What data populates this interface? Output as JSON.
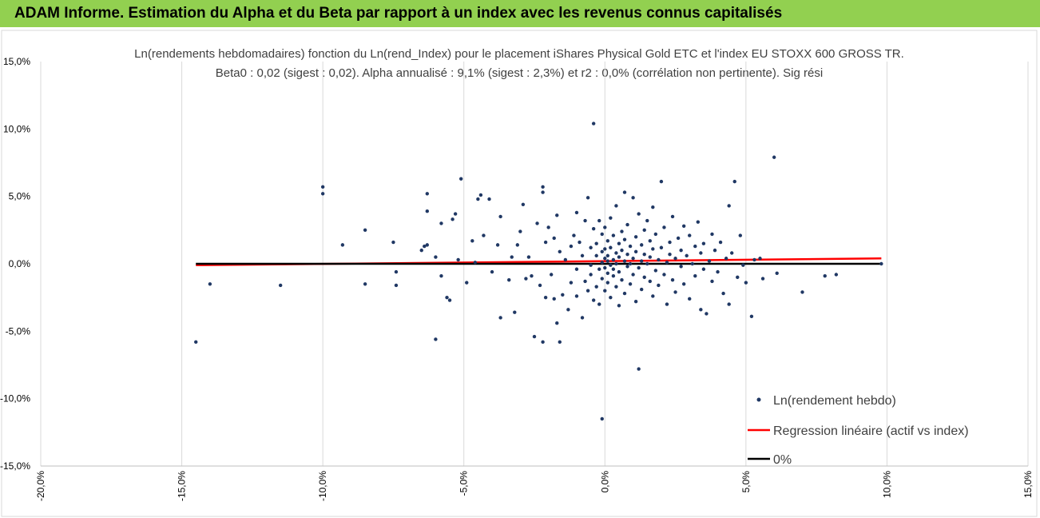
{
  "header": {
    "title": "ADAM Informe. Estimation du Alpha et du Beta par rapport à un index avec les revenus connus capitalisés",
    "background": "#92d050"
  },
  "chart_data": {
    "type": "scatter",
    "title_line1": "Ln(rendements hebdomadaires) fonction du Ln(rend_Index) pour le placement iShares Physical Gold ETC et l'index EU STOXX 600 GROSS TR.",
    "title_line2": "Beta0 : 0,02  (sigest : 0,02).  Alpha annualisé : 9,1% (sigest : 2,3%)  et r2 : 0,0% (corrélation non pertinente). Sig rési",
    "xlim": [
      -0.2,
      0.15
    ],
    "ylim": [
      -0.15,
      0.15
    ],
    "x_ticks": [
      -0.2,
      -0.15,
      -0.1,
      -0.05,
      0.0,
      0.05,
      0.1,
      0.15
    ],
    "x_tick_labels": [
      "-20,0%",
      "-15,0%",
      "-10,0%",
      "-5,0%",
      "0,0%",
      "5,0%",
      "10,0%",
      "15,0%"
    ],
    "y_ticks": [
      0.15,
      0.1,
      0.05,
      0.0,
      -0.05,
      -0.1,
      -0.15
    ],
    "y_tick_labels": [
      "15,0%",
      "10,0%",
      "5,0%",
      "0,0%",
      "-5,0%",
      "-10,0%",
      "-15,0%"
    ],
    "grid": "vertical",
    "legend_position": "bottom-right",
    "series": [
      {
        "name": "Ln(rendement hebdo)",
        "kind": "points",
        "color": "#203864",
        "points": [
          [
            -0.145,
            -0.058
          ],
          [
            -0.14,
            -0.015
          ],
          [
            -0.115,
            -0.016
          ],
          [
            -0.1,
            0.057
          ],
          [
            -0.1,
            0.052
          ],
          [
            -0.093,
            0.014
          ],
          [
            -0.085,
            0.025
          ],
          [
            -0.085,
            -0.015
          ],
          [
            -0.075,
            0.016
          ],
          [
            -0.074,
            -0.006
          ],
          [
            -0.074,
            -0.016
          ],
          [
            -0.065,
            0.01
          ],
          [
            -0.064,
            0.013
          ],
          [
            -0.063,
            0.014
          ],
          [
            -0.063,
            0.052
          ],
          [
            -0.063,
            0.039
          ],
          [
            -0.06,
            -0.056
          ],
          [
            -0.06,
            0.005
          ],
          [
            -0.058,
            -0.009
          ],
          [
            -0.058,
            0.03
          ],
          [
            -0.056,
            -0.025
          ],
          [
            -0.055,
            -0.027
          ],
          [
            -0.054,
            0.033
          ],
          [
            -0.053,
            0.037
          ],
          [
            -0.052,
            0.003
          ],
          [
            -0.051,
            0.063
          ],
          [
            -0.049,
            -0.014
          ],
          [
            -0.047,
            0.017
          ],
          [
            -0.046,
            0.001
          ],
          [
            -0.045,
            0.048
          ],
          [
            -0.044,
            0.051
          ],
          [
            -0.043,
            0.021
          ],
          [
            -0.041,
            0.048
          ],
          [
            -0.04,
            -0.006
          ],
          [
            -0.038,
            0.014
          ],
          [
            -0.037,
            0.035
          ],
          [
            -0.037,
            -0.04
          ],
          [
            -0.034,
            -0.012
          ],
          [
            -0.033,
            0.005
          ],
          [
            -0.032,
            -0.036
          ],
          [
            -0.031,
            0.014
          ],
          [
            -0.03,
            0.024
          ],
          [
            -0.029,
            0.044
          ],
          [
            -0.028,
            -0.011
          ],
          [
            -0.027,
            0.005
          ],
          [
            -0.026,
            -0.009
          ],
          [
            -0.025,
            -0.054
          ],
          [
            -0.024,
            0.03
          ],
          [
            -0.023,
            -0.016
          ],
          [
            -0.022,
            -0.058
          ],
          [
            -0.022,
            0.053
          ],
          [
            -0.022,
            0.057
          ],
          [
            -0.021,
            0.016
          ],
          [
            -0.021,
            -0.025
          ],
          [
            -0.02,
            0.027
          ],
          [
            -0.019,
            -0.008
          ],
          [
            -0.018,
            0.019
          ],
          [
            -0.018,
            -0.026
          ],
          [
            -0.017,
            -0.044
          ],
          [
            -0.017,
            0.036
          ],
          [
            -0.016,
            -0.058
          ],
          [
            -0.016,
            0.009
          ],
          [
            -0.015,
            -0.023
          ],
          [
            -0.014,
            0.003
          ],
          [
            -0.013,
            -0.034
          ],
          [
            -0.012,
            0.013
          ],
          [
            -0.012,
            -0.014
          ],
          [
            -0.011,
            0.021
          ],
          [
            -0.01,
            -0.004
          ],
          [
            -0.01,
            -0.024
          ],
          [
            -0.01,
            0.038
          ],
          [
            -0.009,
            0.016
          ],
          [
            -0.008,
            -0.04
          ],
          [
            -0.008,
            0.006
          ],
          [
            -0.007,
            0.032
          ],
          [
            -0.007,
            -0.013
          ],
          [
            -0.006,
            0.049
          ],
          [
            -0.006,
            -0.02
          ],
          [
            -0.005,
            0.012
          ],
          [
            -0.005,
            -0.001
          ],
          [
            -0.005,
            -0.008
          ],
          [
            -0.004,
            0.104
          ],
          [
            -0.004,
            0.026
          ],
          [
            -0.004,
            -0.027
          ],
          [
            -0.003,
            0.006
          ],
          [
            -0.003,
            -0.017
          ],
          [
            -0.003,
            0.015
          ],
          [
            -0.002,
            -0.004
          ],
          [
            -0.002,
            0.032
          ],
          [
            -0.002,
            -0.03
          ],
          [
            -0.001,
            0.001
          ],
          [
            -0.001,
            0.009
          ],
          [
            -0.001,
            -0.011
          ],
          [
            -0.001,
            0.022
          ],
          [
            0.0,
            -0.003
          ],
          [
            0.0,
            0.004
          ],
          [
            0.0,
            -0.02
          ],
          [
            0.0,
            0.011
          ],
          [
            0.0,
            0.027
          ],
          [
            0.001,
            -0.007
          ],
          [
            0.001,
            0.002
          ],
          [
            0.001,
            0.017
          ],
          [
            0.001,
            -0.014
          ],
          [
            0.001,
            0.006
          ],
          [
            0.002,
            -0.001
          ],
          [
            0.002,
            0.034
          ],
          [
            0.002,
            -0.025
          ],
          [
            0.002,
            0.012
          ],
          [
            0.003,
            0.003
          ],
          [
            0.003,
            -0.009
          ],
          [
            0.003,
            0.021
          ],
          [
            0.003,
            -0.004
          ],
          [
            0.004,
            0.008
          ],
          [
            0.004,
            0.043
          ],
          [
            0.004,
            -0.017
          ],
          [
            0.004,
            0.0
          ],
          [
            0.005,
            0.015
          ],
          [
            0.005,
            -0.031
          ],
          [
            0.005,
            0.005
          ],
          [
            0.005,
            -0.006
          ],
          [
            0.006,
            0.024
          ],
          [
            0.006,
            -0.012
          ],
          [
            0.006,
            0.01
          ],
          [
            0.007,
            0.002
          ],
          [
            0.007,
            0.053
          ],
          [
            0.007,
            -0.022
          ],
          [
            0.007,
            0.018
          ],
          [
            0.008,
            -0.002
          ],
          [
            0.008,
            0.007
          ],
          [
            0.008,
            0.029
          ],
          [
            0.009,
            -0.015
          ],
          [
            0.009,
            0.013
          ],
          [
            0.009,
            0.0
          ],
          [
            0.01,
            0.049
          ],
          [
            0.01,
            -0.008
          ],
          [
            0.01,
            0.004
          ],
          [
            0.011,
            -0.028
          ],
          [
            0.011,
            0.02
          ],
          [
            0.011,
            0.009
          ],
          [
            0.012,
            -0.003
          ],
          [
            0.012,
            0.037
          ],
          [
            0.012,
            -0.078
          ],
          [
            0.013,
            0.014
          ],
          [
            0.013,
            -0.019
          ],
          [
            0.013,
            0.002
          ],
          [
            0.014,
            0.025
          ],
          [
            0.014,
            -0.01
          ],
          [
            0.014,
            0.007
          ],
          [
            0.015,
            0.0
          ],
          [
            0.015,
            0.032
          ],
          [
            0.016,
            -0.013
          ],
          [
            0.016,
            0.017
          ],
          [
            0.016,
            0.005
          ],
          [
            0.017,
            -0.024
          ],
          [
            0.017,
            0.011
          ],
          [
            0.017,
            0.042
          ],
          [
            0.018,
            -0.005
          ],
          [
            0.018,
            0.022
          ],
          [
            0.019,
            0.003
          ],
          [
            0.019,
            -0.016
          ],
          [
            0.02,
            0.061
          ],
          [
            0.02,
            0.012
          ],
          [
            0.021,
            -0.008
          ],
          [
            0.021,
            0.027
          ],
          [
            0.022,
            0.001
          ],
          [
            0.022,
            -0.03
          ],
          [
            0.023,
            0.016
          ],
          [
            0.023,
            0.007
          ],
          [
            0.024,
            -0.012
          ],
          [
            0.024,
            0.035
          ],
          [
            0.025,
            0.004
          ],
          [
            0.025,
            -0.021
          ],
          [
            0.026,
            0.019
          ],
          [
            0.027,
            -0.002
          ],
          [
            0.027,
            0.01
          ],
          [
            0.028,
            0.028
          ],
          [
            0.028,
            -0.015
          ],
          [
            0.029,
            0.006
          ],
          [
            0.03,
            -0.026
          ],
          [
            0.03,
            0.021
          ],
          [
            0.031,
            0.0
          ],
          [
            0.032,
            0.013
          ],
          [
            0.032,
            -0.009
          ],
          [
            0.033,
            0.031
          ],
          [
            0.034,
            -0.034
          ],
          [
            0.034,
            0.008
          ],
          [
            0.035,
            -0.004
          ],
          [
            0.035,
            0.015
          ],
          [
            0.036,
            -0.037
          ],
          [
            0.037,
            0.002
          ],
          [
            0.038,
            0.022
          ],
          [
            0.038,
            -0.013
          ],
          [
            0.039,
            0.01
          ],
          [
            0.04,
            -0.006
          ],
          [
            0.041,
            0.016
          ],
          [
            0.042,
            -0.022
          ],
          [
            0.043,
            0.004
          ],
          [
            0.044,
            0.043
          ],
          [
            0.044,
            -0.03
          ],
          [
            0.045,
            0.008
          ],
          [
            0.046,
            0.061
          ],
          [
            0.047,
            -0.01
          ],
          [
            0.048,
            0.021
          ],
          [
            0.049,
            -0.001
          ],
          [
            0.05,
            -0.014
          ],
          [
            0.052,
            -0.039
          ],
          [
            0.053,
            0.003
          ],
          [
            0.055,
            0.004
          ],
          [
            0.056,
            -0.011
          ],
          [
            0.06,
            0.079
          ],
          [
            0.061,
            -0.007
          ],
          [
            0.07,
            -0.021
          ],
          [
            0.078,
            -0.009
          ],
          [
            0.082,
            -0.008
          ],
          [
            0.098,
            0.0
          ],
          [
            -0.001,
            -0.115
          ]
        ]
      },
      {
        "name": "Regression linéaire (actif vs index)",
        "kind": "line",
        "color": "#ff0000",
        "points": [
          [
            -0.145,
            -0.001
          ],
          [
            0.098,
            0.004
          ]
        ]
      },
      {
        "name": "0%",
        "kind": "line",
        "color": "#000000",
        "points": [
          [
            -0.145,
            0.0
          ],
          [
            0.098,
            0.0
          ]
        ]
      }
    ]
  }
}
